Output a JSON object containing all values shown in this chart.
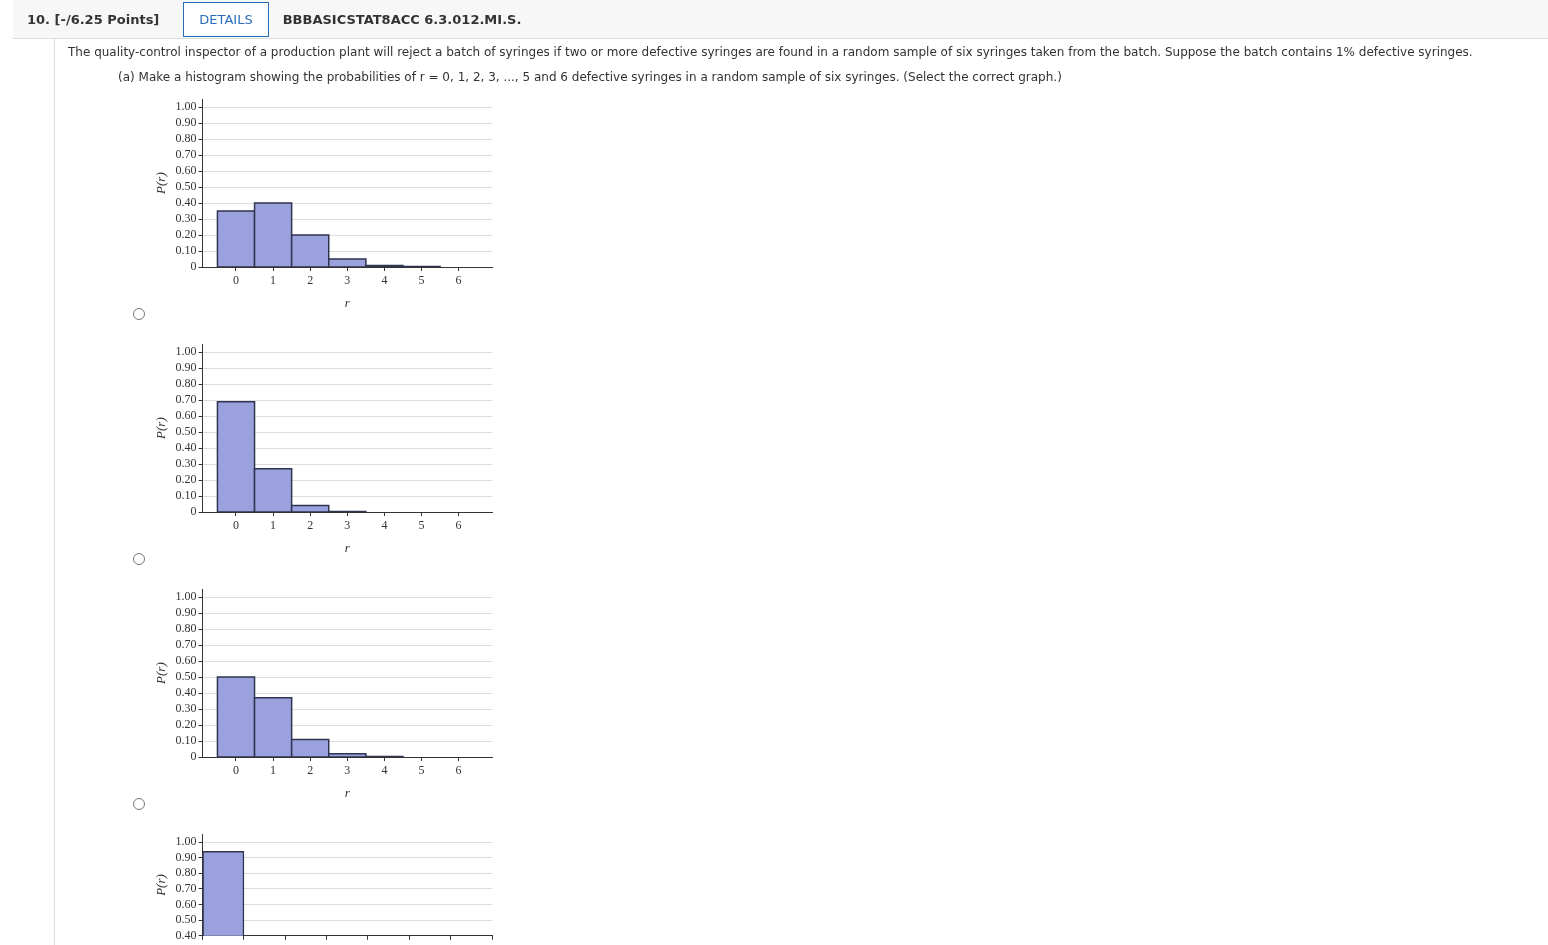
{
  "chart_data": [
    {
      "type": "histogram",
      "annotations": [
        "10. [-/6.25 Points]",
        "DETAILS",
        "BBBASICSTAT8ACC 6.3.012.MI.S.",
        "The quality-control inspector of a production plant will reject a batch of syringes if two or more defective syringes are found in a random sample of six syringes taken from the batch. Suppose the batch contains 1% defective syringes.",
        "(a) Make a histogram showing the probabilities of r = 0, 1, 2, 3, ..., 5 and 6 defective syringes in a random sample of six syringes. (Select the correct graph.)"
      ],
      "bins": [
        -0.5,
        0.5,
        1.5,
        2.5,
        3.5,
        4.5,
        5.5,
        6.5
      ],
      "values": [
        0.35,
        0.4,
        0.2,
        0.05,
        0.01,
        0.003,
        0
      ],
      "color": "#9aa1dc",
      "xlim": [
        -0.9,
        6.9
      ],
      "xticks": [
        0,
        1,
        2,
        3,
        4,
        5,
        6
      ],
      "ylim": [
        0,
        1.05
      ],
      "yticks": [
        {
          "value": 0,
          "label": "0"
        },
        {
          "value": 0.1,
          "label": "0.10"
        },
        {
          "value": 0.2,
          "label": "0.20"
        },
        {
          "value": 0.3,
          "label": "0.30"
        },
        {
          "value": 0.4,
          "label": "0.40"
        },
        {
          "value": 0.5,
          "label": "0.50"
        },
        {
          "value": 0.6,
          "label": "0.60"
        },
        {
          "value": 0.7,
          "label": "0.70"
        },
        {
          "value": 0.8,
          "label": "0.80"
        },
        {
          "value": 0.9,
          "label": "0.90"
        },
        {
          "value": 1,
          "label": "1.00"
        }
      ],
      "xlabel": "r",
      "ylabel": "P(r)",
      "grid": "y"
    },
    {
      "type": "histogram",
      "bins": [
        -0.5,
        0.5,
        1.5,
        2.5,
        3.5,
        4.5,
        5.5,
        6.5
      ],
      "values": [
        0.69,
        0.27,
        0.04,
        0.003,
        0,
        0,
        0
      ],
      "color": "#9aa1dc",
      "xlim": [
        -0.9,
        6.9
      ],
      "xticks": [
        0,
        1,
        2,
        3,
        4,
        5,
        6
      ],
      "ylim": [
        0,
        1.05
      ],
      "yticks": [
        {
          "value": 0,
          "label": "0"
        },
        {
          "value": 0.1,
          "label": "0.10"
        },
        {
          "value": 0.2,
          "label": "0.20"
        },
        {
          "value": 0.3,
          "label": "0.30"
        },
        {
          "value": 0.4,
          "label": "0.40"
        },
        {
          "value": 0.5,
          "label": "0.50"
        },
        {
          "value": 0.6,
          "label": "0.60"
        },
        {
          "value": 0.7,
          "label": "0.70"
        },
        {
          "value": 0.8,
          "label": "0.80"
        },
        {
          "value": 0.9,
          "label": "0.90"
        },
        {
          "value": 1,
          "label": "1.00"
        }
      ],
      "xlabel": "r",
      "ylabel": "P(r)",
      "grid": "y"
    },
    {
      "type": "histogram",
      "bins": [
        -0.5,
        0.5,
        1.5,
        2.5,
        3.5,
        4.5,
        5.5,
        6.5
      ],
      "values": [
        0.5,
        0.37,
        0.11,
        0.02,
        0.003,
        0,
        0
      ],
      "color": "#9aa1dc",
      "xlim": [
        -0.9,
        6.9
      ],
      "xticks": [
        0,
        1,
        2,
        3,
        4,
        5,
        6
      ],
      "ylim": [
        0,
        1.05
      ],
      "yticks": [
        {
          "value": 0,
          "label": "0"
        },
        {
          "value": 0.1,
          "label": "0.10"
        },
        {
          "value": 0.2,
          "label": "0.20"
        },
        {
          "value": 0.3,
          "label": "0.30"
        },
        {
          "value": 0.4,
          "label": "0.40"
        },
        {
          "value": 0.5,
          "label": "0.50"
        },
        {
          "value": 0.6,
          "label": "0.60"
        },
        {
          "value": 0.7,
          "label": "0.70"
        },
        {
          "value": 0.8,
          "label": "0.80"
        },
        {
          "value": 0.9,
          "label": "0.90"
        },
        {
          "value": 1,
          "label": "1.00"
        }
      ],
      "xlabel": "r",
      "ylabel": "P(r)",
      "grid": "y"
    },
    {
      "type": "bar",
      "categories": [
        null,
        null,
        null,
        null,
        null,
        null,
        null
      ],
      "values": [
        0.94,
        null,
        null,
        null,
        null,
        null,
        null
      ],
      "color": "#9aa1dc",
      "ylim": [
        0.4,
        1.05
      ],
      "yticks": [
        {
          "value": 0.4,
          "label": "0.40"
        },
        {
          "value": 0.5,
          "label": "0.50"
        },
        {
          "value": 0.6,
          "label": "0.60"
        },
        {
          "value": 0.7,
          "label": "0.70"
        },
        {
          "value": 0.8,
          "label": "0.80"
        },
        {
          "value": 0.9,
          "label": "0.90"
        },
        {
          "value": 1,
          "label": "1.00"
        }
      ],
      "ylabel": "P(r)",
      "grid": "y",
      "tick_labels": "y"
    }
  ]
}
